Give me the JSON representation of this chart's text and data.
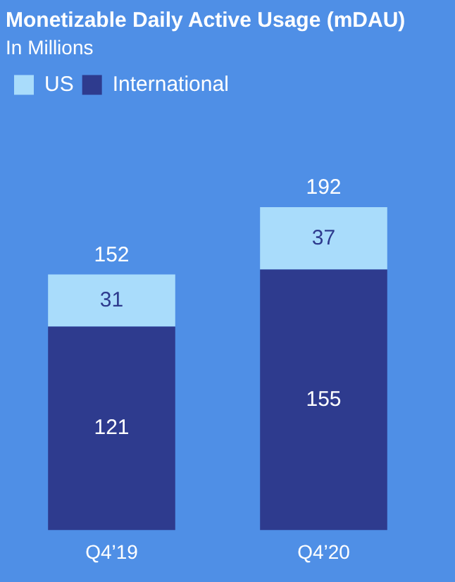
{
  "chart_data": {
    "type": "bar",
    "title": "Monetizable Daily Active Usage (mDAU)",
    "subtitle": "In Millions",
    "categories": [
      "Q4’19",
      "Q4’20"
    ],
    "stacked": true,
    "series": [
      {
        "name": "International",
        "color": "#2e3b8e",
        "values": [
          121,
          155
        ]
      },
      {
        "name": "US",
        "color": "#a9dcfb",
        "values": [
          31,
          37
        ]
      }
    ],
    "totals": [
      "152",
      "192"
    ],
    "data_labels": true,
    "legend": "top left",
    "grid": false
  }
}
